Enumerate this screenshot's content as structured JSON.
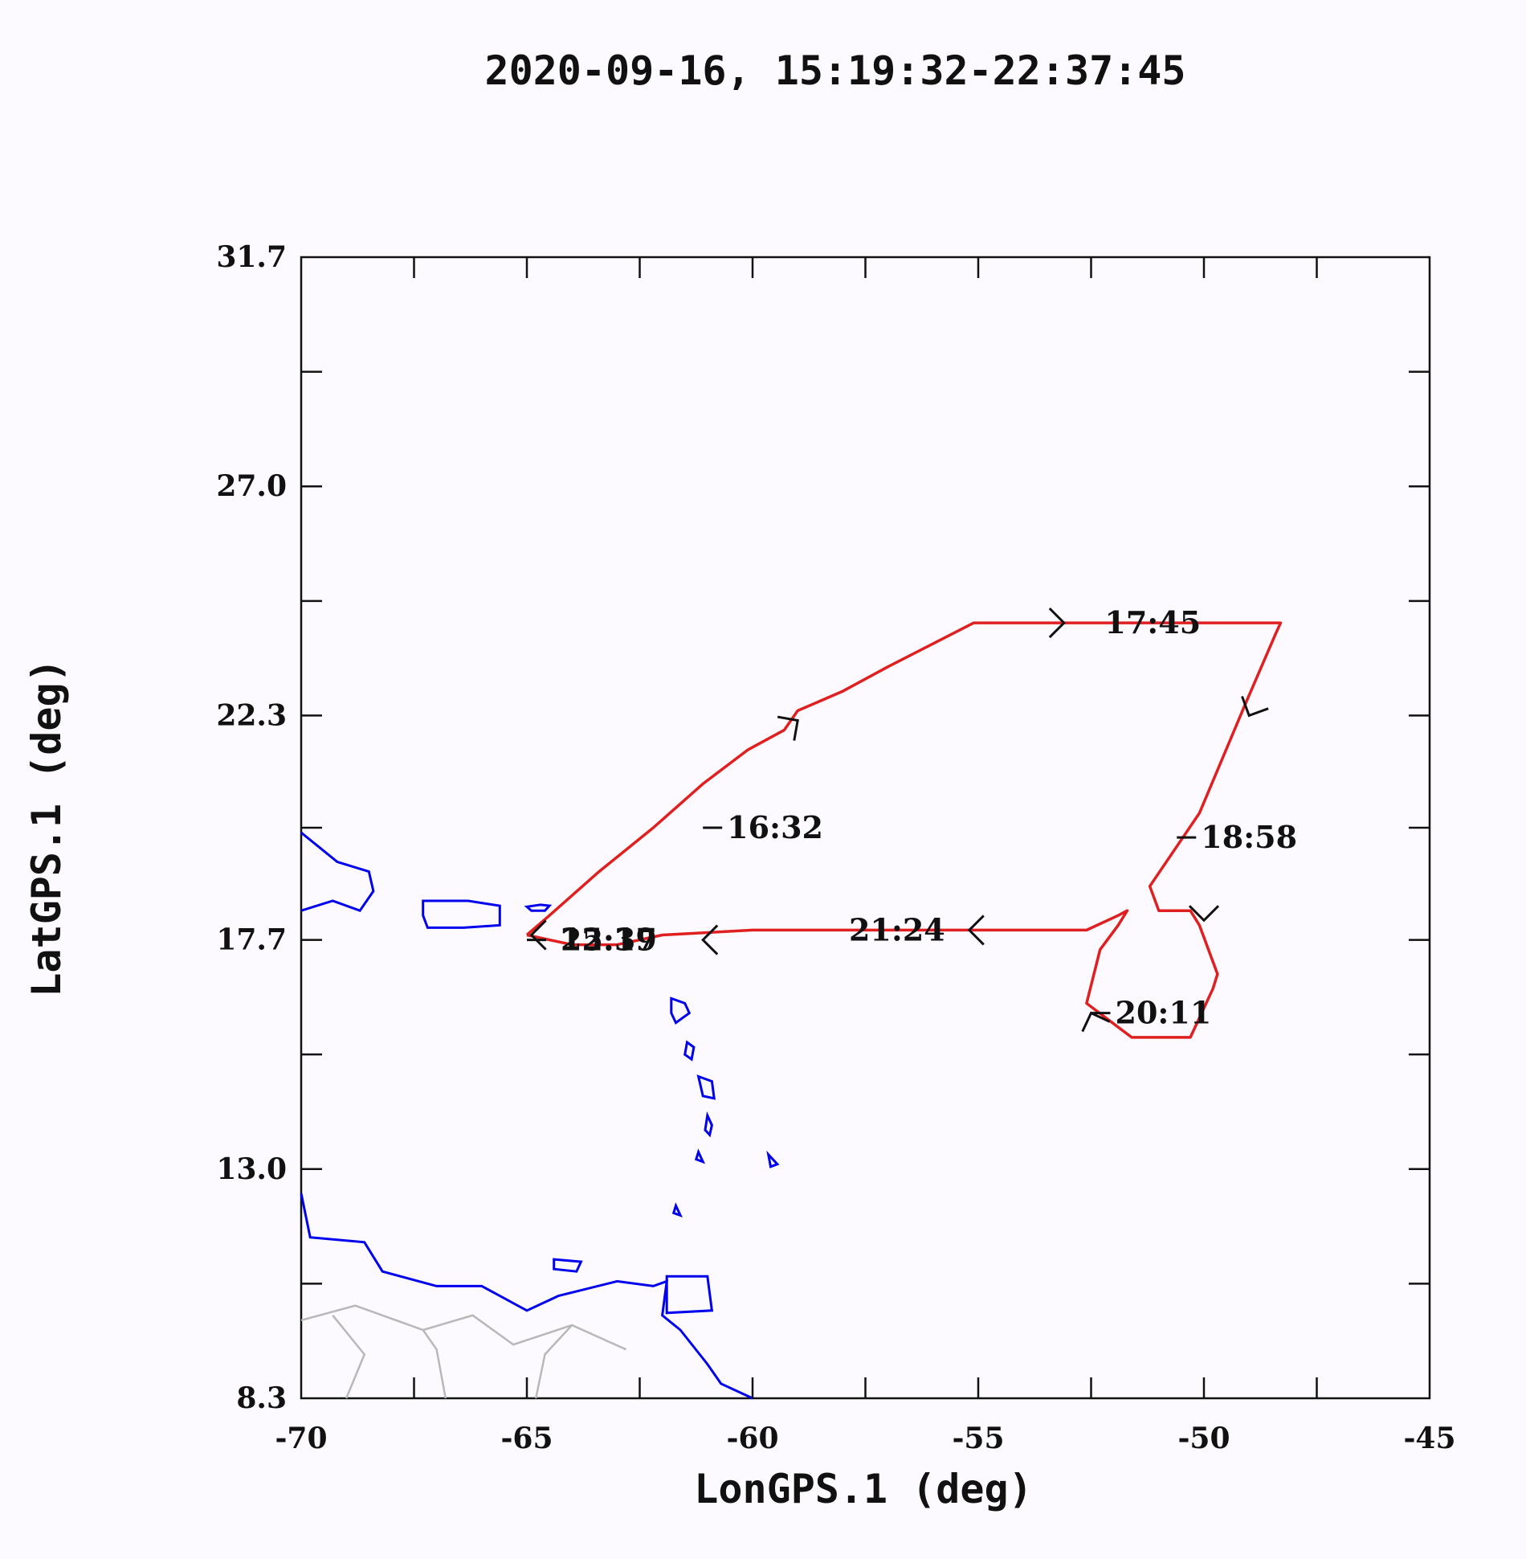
{
  "title": "2020-09-16, 15:19:32-22:37:45",
  "colors": {
    "track": "#e02020",
    "coast": "#0000ee",
    "borders": "#b8b8b8",
    "axes": "#111111",
    "background": "#fcfafe"
  },
  "chart_data": {
    "type": "line",
    "xlabel": "LonGPS.1 (deg)",
    "ylabel": "LatGPS.1 (deg)",
    "xlim": [
      -70,
      -45
    ],
    "ylim": [
      8.3,
      31.7
    ],
    "x_ticks": [
      "-70",
      "-65",
      "-60",
      "-55",
      "-50",
      "-45"
    ],
    "y_ticks": [
      "8.3",
      "13.0",
      "17.7",
      "22.3",
      "27.0",
      "31.7"
    ],
    "grid": false,
    "series": [
      {
        "x": [
          -65.0,
          -64.5,
          -63.4,
          -62.2,
          -61.1,
          -60.1,
          -59.3,
          -59.0,
          -58.0,
          -57.0,
          -55.1,
          -53.0,
          -51.0,
          -48.3,
          -48.4,
          -49.1,
          -50.1,
          -51.2,
          -51.0,
          -50.3,
          -50.1,
          -49.7,
          -49.8,
          -50.3,
          -51.6,
          -52.6,
          -52.3,
          -51.9,
          -51.7,
          -51.9,
          -52.6,
          -55.0,
          -58.0,
          -60.0,
          -62.0,
          -63.0,
          -64.0,
          -65.0
        ],
        "y": [
          17.8,
          18.2,
          19.1,
          20.0,
          20.9,
          21.6,
          22.0,
          22.4,
          22.8,
          23.3,
          24.2,
          24.2,
          24.2,
          24.2,
          24.0,
          22.5,
          20.3,
          18.8,
          18.3,
          18.3,
          18.0,
          17.0,
          16.7,
          15.7,
          15.7,
          16.4,
          17.5,
          18.0,
          18.3,
          18.2,
          17.9,
          17.9,
          17.9,
          17.9,
          17.8,
          17.6,
          17.6,
          17.8
        ]
      }
    ],
    "annotations": [
      "16:32",
      "17:45",
      "18:58",
      "20:11",
      "21:24",
      "15:19",
      "22:37"
    ]
  }
}
